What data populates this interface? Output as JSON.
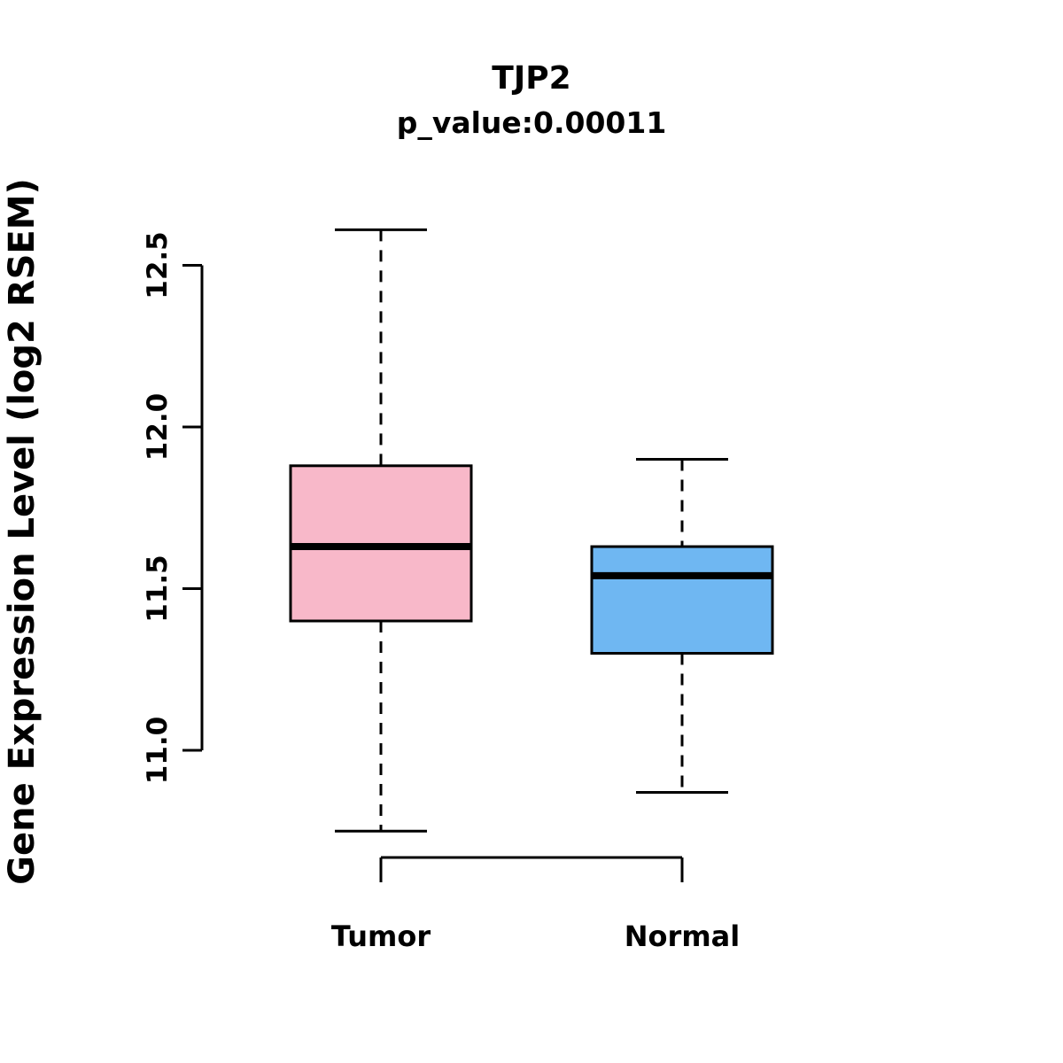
{
  "chart_data": {
    "type": "boxplot",
    "title": "TJP2",
    "subtitle": "p_value:0.00011",
    "ylabel": "Gene Expression Level (log2 RSEM)",
    "yticks": [
      11.0,
      11.5,
      12.0,
      12.5
    ],
    "ylim": [
      10.7,
      12.65
    ],
    "grid": false,
    "legend": "none",
    "categories": [
      "Tumor",
      "Normal"
    ],
    "groups": [
      {
        "label": "Tumor",
        "color": "#F8B8C9",
        "lower_whisker": 10.75,
        "q1": 11.4,
        "median": 11.63,
        "q3": 11.88,
        "upper_whisker": 12.61
      },
      {
        "label": "Normal",
        "color": "#6FB7F2",
        "lower_whisker": 10.87,
        "q1": 11.3,
        "median": 11.54,
        "q3": 11.63,
        "upper_whisker": 11.9
      }
    ],
    "colors": {
      "tumor_fill": "#F8B8C9",
      "normal_fill": "#6FB7F2",
      "stroke": "#000000",
      "background": "#FFFFFF"
    }
  }
}
